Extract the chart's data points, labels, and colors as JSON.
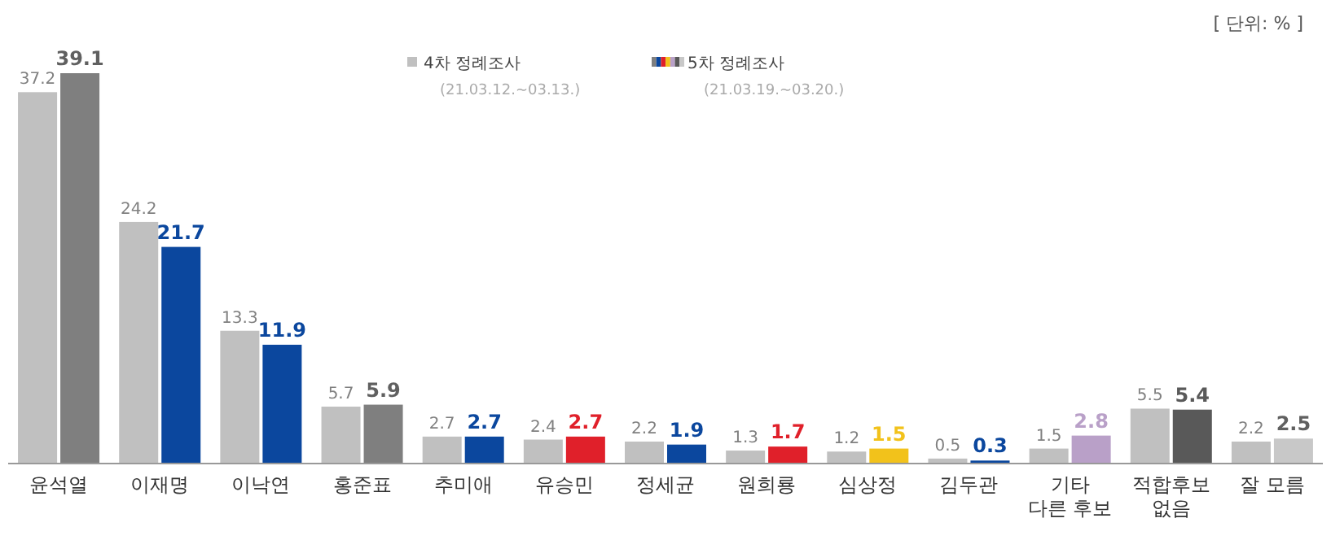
{
  "chart_data": {
    "type": "bar",
    "categories": [
      "윤석열",
      "이재명",
      "이낙연",
      "홍준표",
      "추미애",
      "유승민",
      "정세균",
      "원희룡",
      "심상정",
      "김두관",
      "기타\n다른 후보",
      "적합후보\n없음",
      "잘 모름"
    ],
    "series": [
      {
        "name": "4차 정례조사\n(21.03.12.~03.13.)",
        "color": "#c0c0c0",
        "values": [
          37.2,
          24.2,
          13.3,
          5.7,
          2.7,
          2.4,
          2.2,
          1.3,
          1.2,
          0.5,
          1.5,
          5.5,
          2.2
        ]
      },
      {
        "name": "5차 정례조사\n(21.03.19.~03.20.)",
        "colors": [
          "#7f7f7f",
          "#0b479e",
          "#0b479e",
          "#7f7f7f",
          "#0b479e",
          "#e0202a",
          "#0b479e",
          "#e0202a",
          "#f2c21b",
          "#0b479e",
          "#b9a0c8",
          "#595959",
          "#c8c8c8"
        ],
        "values": [
          39.1,
          21.7,
          11.9,
          5.9,
          2.7,
          2.7,
          1.9,
          1.7,
          1.5,
          0.3,
          2.8,
          5.4,
          2.5
        ]
      }
    ],
    "data_labels": true,
    "legend": "top",
    "annotations": [
      "[ 단위: % ]"
    ]
  }
}
